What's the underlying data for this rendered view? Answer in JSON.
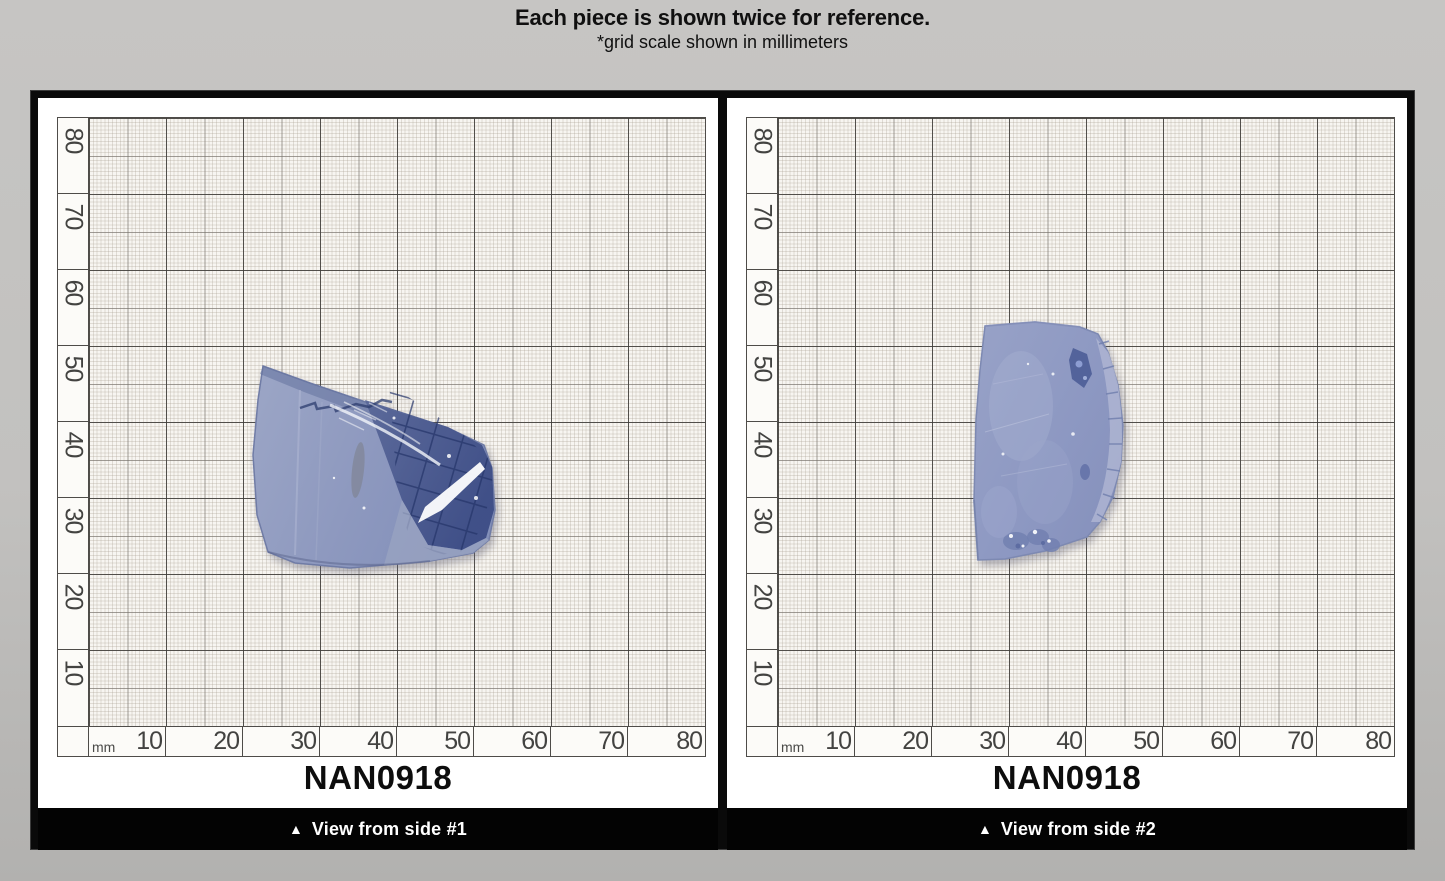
{
  "header": {
    "title": "Each piece is shown twice for reference.",
    "subtitle": "*grid scale shown in millimeters"
  },
  "panels": [
    {
      "specimen_id": "NAN0918",
      "caption_icon": "▲",
      "caption": "View from side #1",
      "unit_label": "mm",
      "y_labels": [
        "80",
        "70",
        "60",
        "50",
        "40",
        "30",
        "20",
        "10"
      ],
      "x_labels": [
        "10",
        "20",
        "30",
        "40",
        "50",
        "60",
        "70",
        "80"
      ]
    },
    {
      "specimen_id": "NAN0918",
      "caption_icon": "▲",
      "caption": "View from side #2",
      "unit_label": "mm",
      "y_labels": [
        "80",
        "70",
        "60",
        "50",
        "40",
        "30",
        "20",
        "10"
      ],
      "x_labels": [
        "10",
        "20",
        "30",
        "40",
        "50",
        "60",
        "70",
        "80"
      ]
    }
  ],
  "colors": {
    "page_background": "#c2c1bf",
    "frame_black": "#0a0a0a",
    "paper": "#f7f5f1",
    "grid_major_line": "#3e3c39",
    "caption_text": "#ffffff",
    "crystal_base": "#8e99c1",
    "crystal_window": "#46568c"
  }
}
